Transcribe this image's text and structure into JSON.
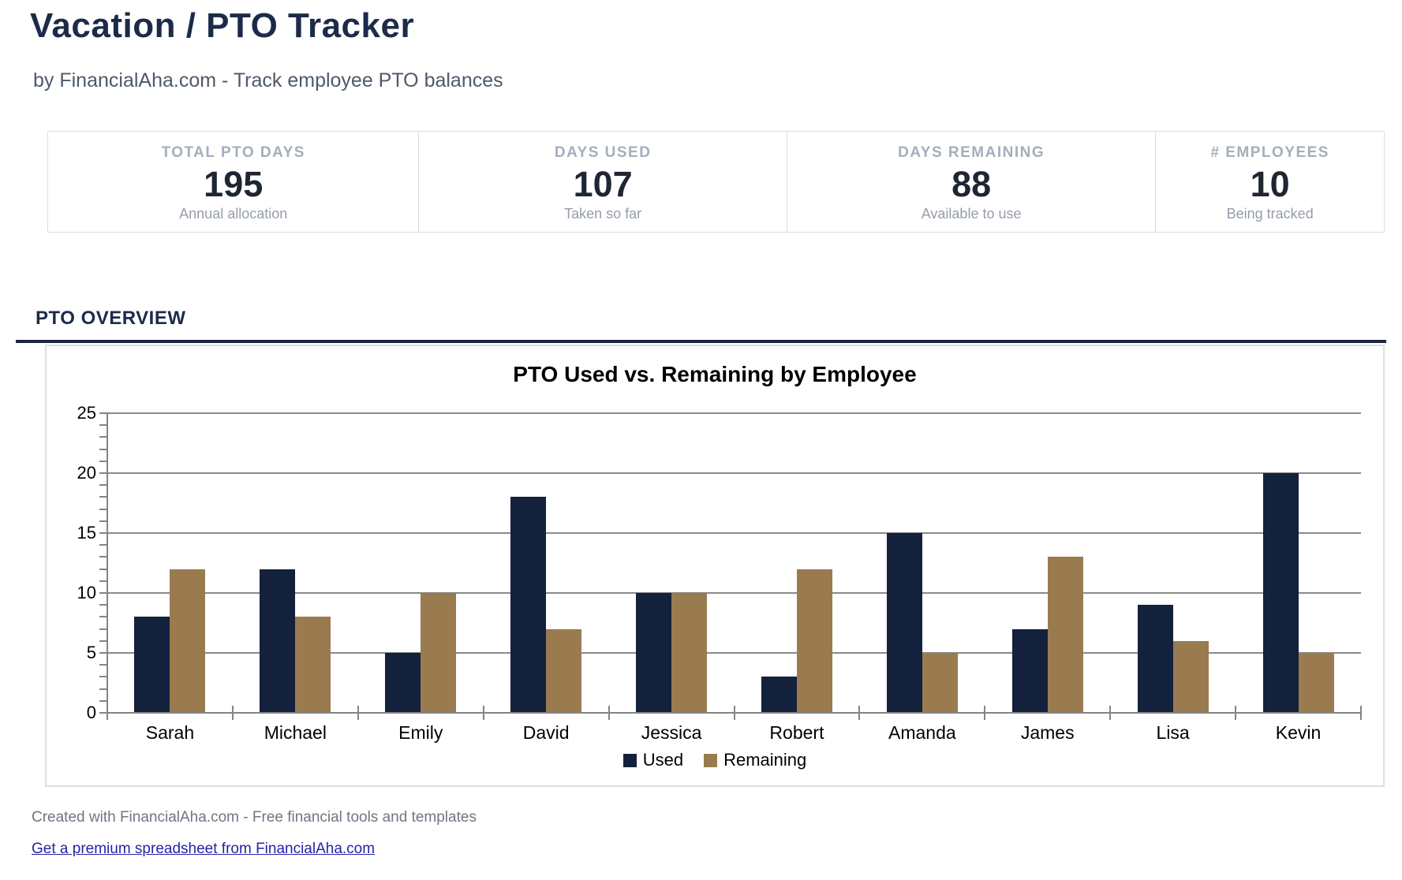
{
  "header": {
    "title": "Vacation / PTO Tracker",
    "subtitle": "by FinancialAha.com - Track employee PTO balances"
  },
  "stats": [
    {
      "label": "TOTAL PTO DAYS",
      "value": "195",
      "sub": "Annual allocation"
    },
    {
      "label": "DAYS USED",
      "value": "107",
      "sub": "Taken so far"
    },
    {
      "label": "DAYS REMAINING",
      "value": "88",
      "sub": "Available to use"
    },
    {
      "label": "# EMPLOYEES",
      "value": "10",
      "sub": "Being tracked"
    }
  ],
  "section": {
    "title": "PTO OVERVIEW"
  },
  "chart_data": {
    "type": "bar",
    "title": "PTO Used vs. Remaining by Employee",
    "categories": [
      "Sarah",
      "Michael",
      "Emily",
      "David",
      "Jessica",
      "Robert",
      "Amanda",
      "James",
      "Lisa",
      "Kevin"
    ],
    "series": [
      {
        "name": "Used",
        "color": "#14213c",
        "values": [
          8,
          12,
          5,
          18,
          10,
          3,
          15,
          7,
          9,
          20
        ]
      },
      {
        "name": "Remaining",
        "color": "#997b4f",
        "values": [
          12,
          8,
          10,
          7,
          10,
          12,
          5,
          13,
          6,
          5
        ]
      }
    ],
    "ylim": [
      0,
      25
    ],
    "ytick_step": 5,
    "minor_tick_step": 1,
    "grid": true,
    "gridline_color": "#8a8a8a",
    "legend_position": "bottom"
  },
  "theme": {
    "accent_navy": "#1b2540",
    "title_color": "#1c2b4a",
    "link_color": "#2424a8"
  },
  "footer": {
    "note": "Created with FinancialAha.com - Free financial tools and templates",
    "link_label": "Get a premium spreadsheet from FinancialAha.com"
  }
}
